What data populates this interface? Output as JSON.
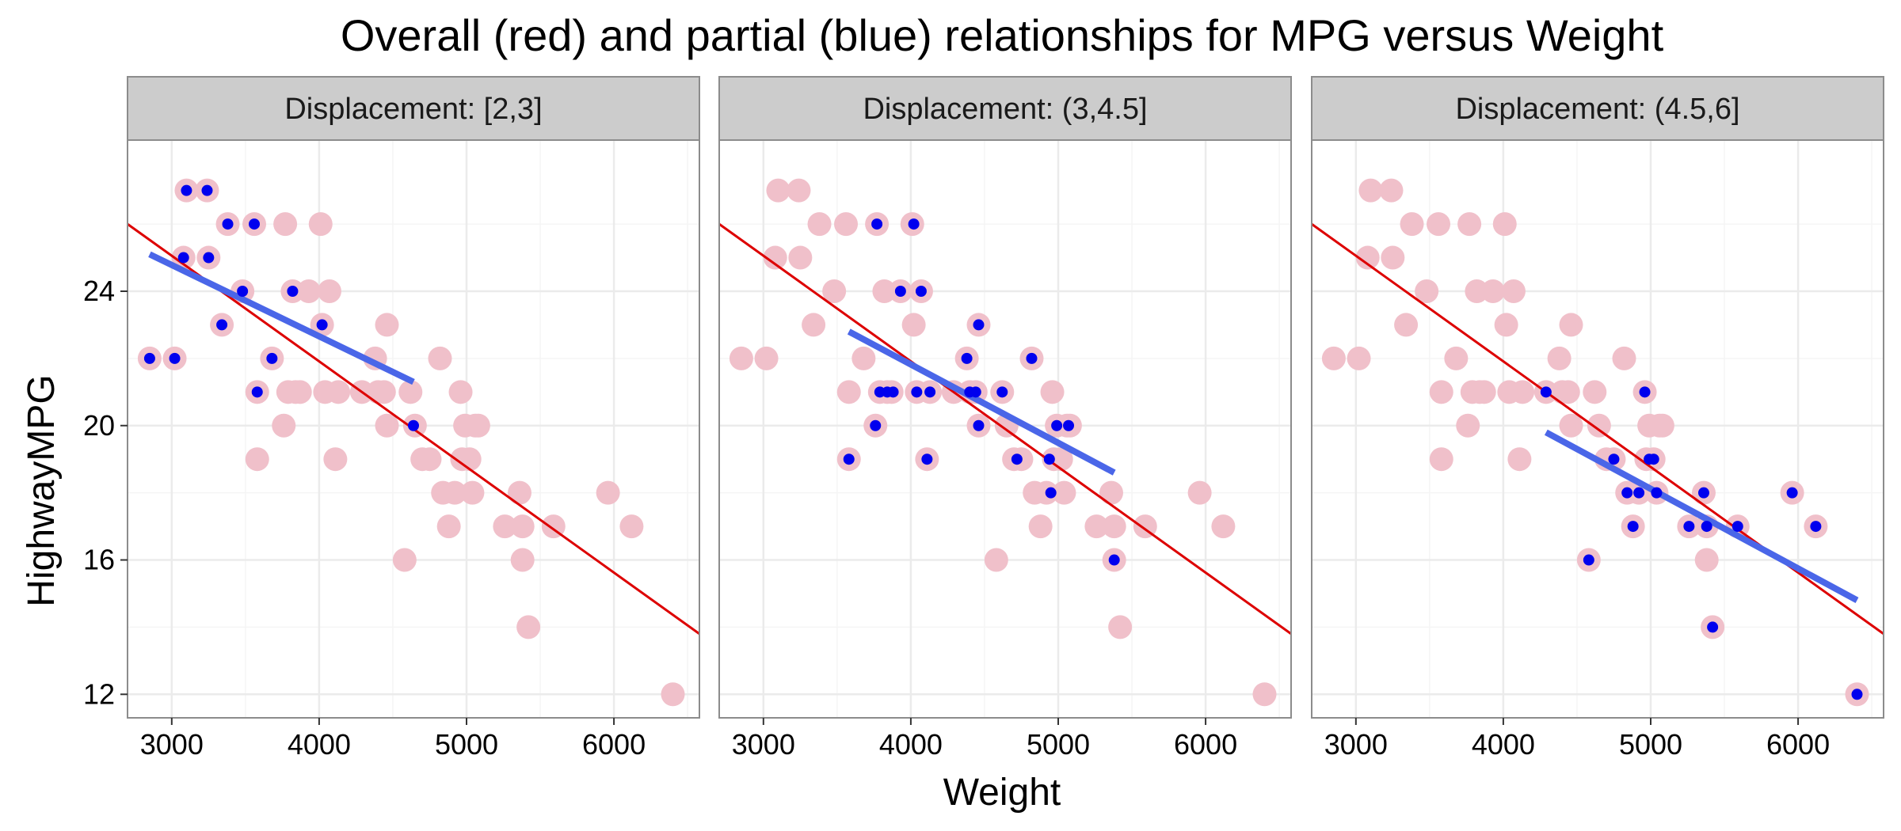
{
  "chart_data": {
    "type": "scatter",
    "title": "Overall (red) and partial (blue) relationships for MPG versus Weight",
    "xlabel": "Weight",
    "ylabel": "HighwayMPG",
    "xlim": [
      2700,
      6580
    ],
    "ylim": [
      11.3,
      28.5
    ],
    "x_ticks": [
      3000,
      4000,
      5000,
      6000
    ],
    "y_ticks": [
      12,
      16,
      20,
      24
    ],
    "grid": true,
    "colors": {
      "background_points": "#f0c0ca",
      "highlight_points": "#0000ee",
      "overall_line": "#dd0000",
      "partial_line": "#4a66e8",
      "strip_fill": "#cccccc",
      "panel_border": "#8c8c8c",
      "grid_major": "#ebebeb",
      "grid_minor": "#f5f5f5"
    },
    "overall_line": {
      "x": [
        2700,
        6580
      ],
      "y": [
        26.0,
        13.8
      ]
    },
    "background_points": [
      {
        "x": 2850,
        "y": 22
      },
      {
        "x": 3020,
        "y": 22
      },
      {
        "x": 3100,
        "y": 27
      },
      {
        "x": 3240,
        "y": 27
      },
      {
        "x": 3080,
        "y": 25
      },
      {
        "x": 3250,
        "y": 25
      },
      {
        "x": 3340,
        "y": 23
      },
      {
        "x": 3380,
        "y": 26
      },
      {
        "x": 3480,
        "y": 24
      },
      {
        "x": 3560,
        "y": 26
      },
      {
        "x": 3580,
        "y": 21
      },
      {
        "x": 3580,
        "y": 19
      },
      {
        "x": 3680,
        "y": 22
      },
      {
        "x": 3760,
        "y": 20
      },
      {
        "x": 3790,
        "y": 21
      },
      {
        "x": 3770,
        "y": 26
      },
      {
        "x": 3820,
        "y": 24
      },
      {
        "x": 3840,
        "y": 21
      },
      {
        "x": 3870,
        "y": 21
      },
      {
        "x": 3930,
        "y": 24
      },
      {
        "x": 4010,
        "y": 26
      },
      {
        "x": 4020,
        "y": 23
      },
      {
        "x": 4040,
        "y": 21
      },
      {
        "x": 4070,
        "y": 24
      },
      {
        "x": 4110,
        "y": 19
      },
      {
        "x": 4130,
        "y": 21
      },
      {
        "x": 4290,
        "y": 21
      },
      {
        "x": 4380,
        "y": 22
      },
      {
        "x": 4400,
        "y": 21
      },
      {
        "x": 4460,
        "y": 23
      },
      {
        "x": 4460,
        "y": 20
      },
      {
        "x": 4440,
        "y": 21
      },
      {
        "x": 4580,
        "y": 16
      },
      {
        "x": 4620,
        "y": 21
      },
      {
        "x": 4650,
        "y": 20
      },
      {
        "x": 4700,
        "y": 19
      },
      {
        "x": 4750,
        "y": 19
      },
      {
        "x": 4820,
        "y": 22
      },
      {
        "x": 4840,
        "y": 18
      },
      {
        "x": 4880,
        "y": 17
      },
      {
        "x": 4920,
        "y": 18
      },
      {
        "x": 4960,
        "y": 21
      },
      {
        "x": 4970,
        "y": 19
      },
      {
        "x": 4990,
        "y": 20
      },
      {
        "x": 5020,
        "y": 19
      },
      {
        "x": 5040,
        "y": 18
      },
      {
        "x": 5060,
        "y": 20
      },
      {
        "x": 5080,
        "y": 20
      },
      {
        "x": 5260,
        "y": 17
      },
      {
        "x": 5360,
        "y": 18
      },
      {
        "x": 5380,
        "y": 17
      },
      {
        "x": 5380,
        "y": 16
      },
      {
        "x": 5420,
        "y": 14
      },
      {
        "x": 5590,
        "y": 17
      },
      {
        "x": 5960,
        "y": 18
      },
      {
        "x": 6120,
        "y": 17
      },
      {
        "x": 6400,
        "y": 12
      }
    ],
    "panels": [
      {
        "strip_label": "Displacement: [2,3]",
        "partial_line": {
          "x": [
            2850,
            4640
          ],
          "y": [
            25.1,
            21.3
          ]
        },
        "highlight_points": [
          {
            "x": 2850,
            "y": 22
          },
          {
            "x": 3020,
            "y": 22
          },
          {
            "x": 3100,
            "y": 27
          },
          {
            "x": 3240,
            "y": 27
          },
          {
            "x": 3080,
            "y": 25
          },
          {
            "x": 3250,
            "y": 25
          },
          {
            "x": 3340,
            "y": 23
          },
          {
            "x": 3380,
            "y": 26
          },
          {
            "x": 3480,
            "y": 24
          },
          {
            "x": 3560,
            "y": 26
          },
          {
            "x": 3580,
            "y": 21
          },
          {
            "x": 3680,
            "y": 22
          },
          {
            "x": 3820,
            "y": 24
          },
          {
            "x": 4020,
            "y": 23
          },
          {
            "x": 4640,
            "y": 20
          }
        ]
      },
      {
        "strip_label": "Displacement: (3,4.5]",
        "partial_line": {
          "x": [
            3580,
            5380
          ],
          "y": [
            22.8,
            18.6
          ]
        },
        "highlight_points": [
          {
            "x": 3580,
            "y": 19
          },
          {
            "x": 3760,
            "y": 20
          },
          {
            "x": 3770,
            "y": 26
          },
          {
            "x": 3790,
            "y": 21
          },
          {
            "x": 3840,
            "y": 21
          },
          {
            "x": 3880,
            "y": 21
          },
          {
            "x": 3930,
            "y": 24
          },
          {
            "x": 4020,
            "y": 26
          },
          {
            "x": 4040,
            "y": 21
          },
          {
            "x": 4070,
            "y": 24
          },
          {
            "x": 4110,
            "y": 19
          },
          {
            "x": 4130,
            "y": 21
          },
          {
            "x": 4380,
            "y": 22
          },
          {
            "x": 4400,
            "y": 21
          },
          {
            "x": 4440,
            "y": 21
          },
          {
            "x": 4460,
            "y": 23
          },
          {
            "x": 4460,
            "y": 20
          },
          {
            "x": 4620,
            "y": 21
          },
          {
            "x": 4720,
            "y": 19
          },
          {
            "x": 4820,
            "y": 22
          },
          {
            "x": 4940,
            "y": 19
          },
          {
            "x": 4950,
            "y": 18
          },
          {
            "x": 4990,
            "y": 20
          },
          {
            "x": 5070,
            "y": 20
          },
          {
            "x": 5380,
            "y": 16
          }
        ]
      },
      {
        "strip_label": "Displacement: (4.5,6]",
        "partial_line": {
          "x": [
            4290,
            6400
          ],
          "y": [
            19.8,
            14.8
          ]
        },
        "highlight_points": [
          {
            "x": 4290,
            "y": 21
          },
          {
            "x": 4580,
            "y": 16
          },
          {
            "x": 4750,
            "y": 19
          },
          {
            "x": 4840,
            "y": 18
          },
          {
            "x": 4880,
            "y": 17
          },
          {
            "x": 4920,
            "y": 18
          },
          {
            "x": 4960,
            "y": 21
          },
          {
            "x": 4990,
            "y": 19
          },
          {
            "x": 5020,
            "y": 19
          },
          {
            "x": 5040,
            "y": 18
          },
          {
            "x": 5260,
            "y": 17
          },
          {
            "x": 5360,
            "y": 18
          },
          {
            "x": 5380,
            "y": 17
          },
          {
            "x": 5420,
            "y": 14
          },
          {
            "x": 5590,
            "y": 17
          },
          {
            "x": 5960,
            "y": 18
          },
          {
            "x": 6120,
            "y": 17
          },
          {
            "x": 6400,
            "y": 12
          }
        ]
      }
    ]
  }
}
